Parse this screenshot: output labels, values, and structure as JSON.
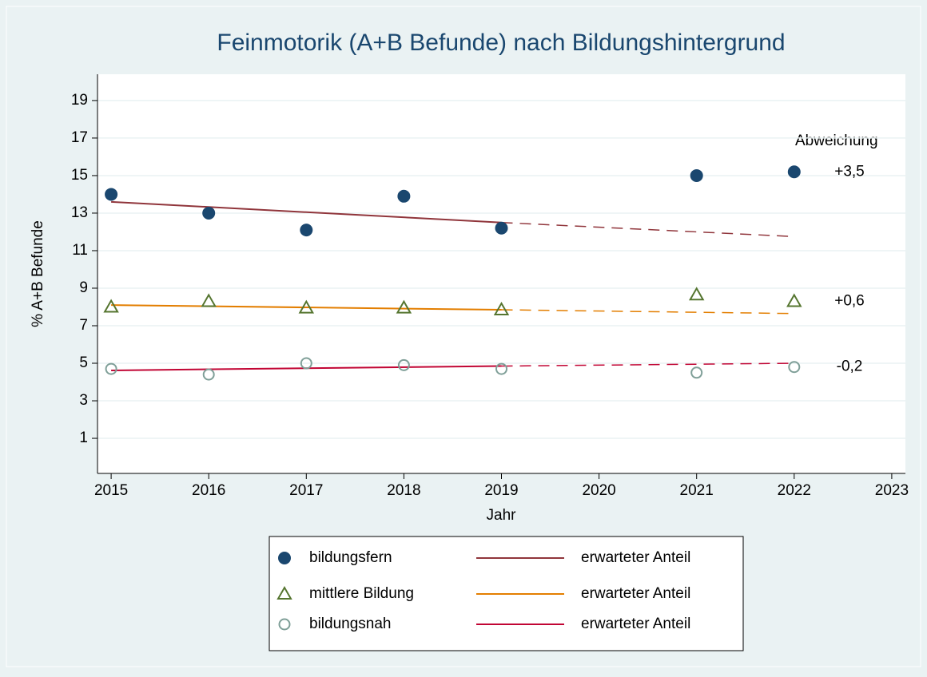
{
  "chart_data": {
    "type": "line",
    "title": "Feinmotorik (A+B Befunde) nach Bildungshintergrund",
    "xlabel": "Jahr",
    "ylabel": "% A+B Befunde",
    "x": [
      2015,
      2016,
      2017,
      2018,
      2019,
      2021,
      2022
    ],
    "series": [
      {
        "name": "bildungsfern",
        "color": "#1a476f",
        "marker": "filled-circle",
        "deviation": "+3,5",
        "values": [
          14,
          13,
          12.1,
          13.9,
          12.2,
          15,
          15.2
        ]
      },
      {
        "name": "mittlere Bildung",
        "color": "#55752f",
        "marker": "hollow-triangle",
        "deviation": "+0,6",
        "values": [
          8.0,
          8.3,
          7.95,
          7.95,
          7.85,
          8.65,
          8.3
        ]
      },
      {
        "name": "bildungsnah",
        "color": "#7f9f98",
        "marker": "hollow-circle",
        "deviation": "-0,2",
        "values": [
          4.7,
          4.4,
          5.0,
          4.9,
          4.7,
          4.5,
          4.8
        ]
      }
    ],
    "trend": [
      {
        "name": "erwarteter Anteil",
        "color": "#90353b",
        "x": [
          2015,
          2019,
          2022
        ],
        "values": [
          13.6,
          12.5,
          11.75
        ]
      },
      {
        "name": "erwarteter Anteil",
        "color": "#e37e00",
        "x": [
          2015,
          2019,
          2022
        ],
        "values": [
          8.1,
          7.85,
          7.65
        ]
      },
      {
        "name": "erwarteter Anteil",
        "color": "#c10534",
        "x": [
          2015,
          2019,
          2022
        ],
        "values": [
          4.62,
          4.85,
          5.0
        ]
      }
    ],
    "deviation_title": "Abweichung",
    "dashed_after": 2019,
    "xlim": [
      2014.86,
      2023.14
    ],
    "xticks": [
      2015,
      2016,
      2017,
      2018,
      2019,
      2020,
      2021,
      2022,
      2023
    ],
    "ylim": [
      -0.87,
      20.4
    ],
    "yticks": [
      1,
      3,
      5,
      7,
      9,
      11,
      13,
      15,
      17,
      19
    ],
    "grid": true
  }
}
